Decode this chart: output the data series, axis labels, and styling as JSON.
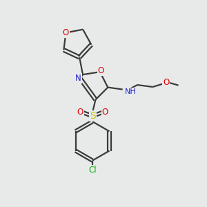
{
  "background_color": "#e8eaea",
  "bond_color": "#3a3a3a",
  "atom_colors": {
    "O": "#e00000",
    "N": "#2020d0",
    "S": "#c8c800",
    "Cl": "#00b000",
    "C": "#3a3a3a",
    "H": "#505050"
  },
  "figsize": [
    3.0,
    3.0
  ],
  "dpi": 100,
  "lw": 1.6,
  "fontsize": 8.5
}
